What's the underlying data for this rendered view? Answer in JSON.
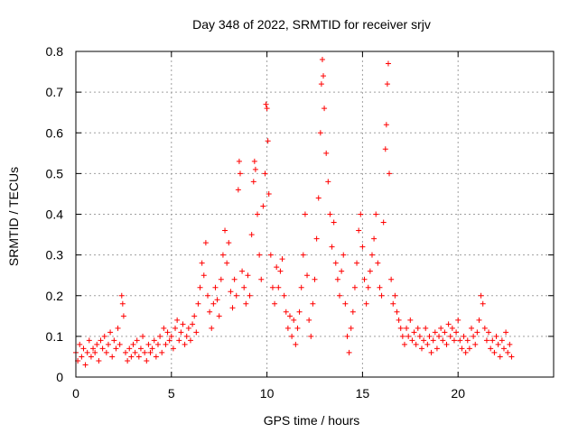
{
  "chart_data": {
    "type": "scatter",
    "title": "Day 348 of 2022, SRMTID for receiver srjv",
    "xlabel": "GPS time / hours",
    "ylabel": "SRMTID / TECUs",
    "xlim": [
      0,
      25
    ],
    "ylim": [
      0,
      0.8
    ],
    "xticks": [
      "0",
      "5",
      "10",
      "15",
      "20"
    ],
    "yticks": [
      "0",
      "0.1",
      "0.2",
      "0.3",
      "0.4",
      "0.5",
      "0.6",
      "0.7",
      "0.8"
    ],
    "grid": true,
    "marker": "+",
    "color": "#ff0000",
    "series": [
      {
        "name": "SRMTID",
        "points": [
          [
            0.0,
            0.06
          ],
          [
            0.1,
            0.04
          ],
          [
            0.2,
            0.08
          ],
          [
            0.3,
            0.05
          ],
          [
            0.4,
            0.07
          ],
          [
            0.5,
            0.03
          ],
          [
            0.6,
            0.06
          ],
          [
            0.7,
            0.09
          ],
          [
            0.8,
            0.05
          ],
          [
            0.9,
            0.07
          ],
          [
            1.0,
            0.06
          ],
          [
            1.1,
            0.08
          ],
          [
            1.2,
            0.04
          ],
          [
            1.3,
            0.09
          ],
          [
            1.4,
            0.07
          ],
          [
            1.5,
            0.1
          ],
          [
            1.6,
            0.06
          ],
          [
            1.7,
            0.08
          ],
          [
            1.8,
            0.11
          ],
          [
            1.9,
            0.05
          ],
          [
            2.0,
            0.09
          ],
          [
            2.1,
            0.07
          ],
          [
            2.2,
            0.12
          ],
          [
            2.3,
            0.08
          ],
          [
            2.4,
            0.2
          ],
          [
            2.45,
            0.18
          ],
          [
            2.5,
            0.15
          ],
          [
            2.6,
            0.06
          ],
          [
            2.7,
            0.04
          ],
          [
            2.8,
            0.07
          ],
          [
            2.9,
            0.05
          ],
          [
            3.0,
            0.08
          ],
          [
            3.1,
            0.06
          ],
          [
            3.2,
            0.09
          ],
          [
            3.3,
            0.05
          ],
          [
            3.4,
            0.07
          ],
          [
            3.5,
            0.1
          ],
          [
            3.6,
            0.06
          ],
          [
            3.7,
            0.04
          ],
          [
            3.8,
            0.08
          ],
          [
            3.9,
            0.06
          ],
          [
            4.0,
            0.07
          ],
          [
            4.1,
            0.09
          ],
          [
            4.2,
            0.05
          ],
          [
            4.3,
            0.08
          ],
          [
            4.4,
            0.1
          ],
          [
            4.5,
            0.06
          ],
          [
            4.6,
            0.12
          ],
          [
            4.7,
            0.08
          ],
          [
            4.8,
            0.11
          ],
          [
            4.9,
            0.09
          ],
          [
            5.0,
            0.1
          ],
          [
            5.1,
            0.07
          ],
          [
            5.2,
            0.12
          ],
          [
            5.3,
            0.14
          ],
          [
            5.4,
            0.09
          ],
          [
            5.5,
            0.11
          ],
          [
            5.6,
            0.13
          ],
          [
            5.7,
            0.08
          ],
          [
            5.8,
            0.1
          ],
          [
            5.9,
            0.12
          ],
          [
            6.0,
            0.09
          ],
          [
            6.1,
            0.13
          ],
          [
            6.2,
            0.15
          ],
          [
            6.3,
            0.11
          ],
          [
            6.4,
            0.18
          ],
          [
            6.5,
            0.22
          ],
          [
            6.6,
            0.28
          ],
          [
            6.7,
            0.25
          ],
          [
            6.8,
            0.33
          ],
          [
            6.9,
            0.2
          ],
          [
            7.0,
            0.16
          ],
          [
            7.1,
            0.12
          ],
          [
            7.2,
            0.18
          ],
          [
            7.3,
            0.22
          ],
          [
            7.4,
            0.19
          ],
          [
            7.5,
            0.15
          ],
          [
            7.6,
            0.24
          ],
          [
            7.7,
            0.3
          ],
          [
            7.8,
            0.36
          ],
          [
            7.9,
            0.28
          ],
          [
            8.0,
            0.33
          ],
          [
            8.1,
            0.21
          ],
          [
            8.2,
            0.17
          ],
          [
            8.3,
            0.24
          ],
          [
            8.4,
            0.2
          ],
          [
            8.5,
            0.46
          ],
          [
            8.55,
            0.53
          ],
          [
            8.6,
            0.5
          ],
          [
            8.7,
            0.26
          ],
          [
            8.8,
            0.22
          ],
          [
            8.9,
            0.18
          ],
          [
            9.0,
            0.25
          ],
          [
            9.1,
            0.2
          ],
          [
            9.2,
            0.35
          ],
          [
            9.3,
            0.48
          ],
          [
            9.35,
            0.53
          ],
          [
            9.4,
            0.51
          ],
          [
            9.5,
            0.4
          ],
          [
            9.6,
            0.3
          ],
          [
            9.7,
            0.24
          ],
          [
            9.8,
            0.42
          ],
          [
            9.9,
            0.5
          ],
          [
            9.95,
            0.67
          ],
          [
            10.0,
            0.66
          ],
          [
            10.05,
            0.58
          ],
          [
            10.1,
            0.45
          ],
          [
            10.2,
            0.3
          ],
          [
            10.3,
            0.22
          ],
          [
            10.4,
            0.18
          ],
          [
            10.5,
            0.27
          ],
          [
            10.6,
            0.22
          ],
          [
            10.7,
            0.26
          ],
          [
            10.8,
            0.29
          ],
          [
            10.9,
            0.2
          ],
          [
            11.0,
            0.16
          ],
          [
            11.1,
            0.12
          ],
          [
            11.2,
            0.15
          ],
          [
            11.3,
            0.1
          ],
          [
            11.4,
            0.14
          ],
          [
            11.5,
            0.08
          ],
          [
            11.6,
            0.12
          ],
          [
            11.7,
            0.16
          ],
          [
            11.8,
            0.22
          ],
          [
            11.9,
            0.3
          ],
          [
            12.0,
            0.4
          ],
          [
            12.1,
            0.25
          ],
          [
            12.2,
            0.14
          ],
          [
            12.3,
            0.1
          ],
          [
            12.4,
            0.18
          ],
          [
            12.5,
            0.24
          ],
          [
            12.6,
            0.34
          ],
          [
            12.7,
            0.44
          ],
          [
            12.8,
            0.6
          ],
          [
            12.85,
            0.72
          ],
          [
            12.9,
            0.78
          ],
          [
            12.95,
            0.74
          ],
          [
            13.0,
            0.66
          ],
          [
            13.1,
            0.55
          ],
          [
            13.2,
            0.48
          ],
          [
            13.3,
            0.4
          ],
          [
            13.4,
            0.32
          ],
          [
            13.5,
            0.38
          ],
          [
            13.6,
            0.28
          ],
          [
            13.7,
            0.24
          ],
          [
            13.8,
            0.2
          ],
          [
            13.9,
            0.26
          ],
          [
            14.0,
            0.3
          ],
          [
            14.1,
            0.18
          ],
          [
            14.2,
            0.1
          ],
          [
            14.3,
            0.06
          ],
          [
            14.4,
            0.12
          ],
          [
            14.5,
            0.16
          ],
          [
            14.6,
            0.22
          ],
          [
            14.7,
            0.28
          ],
          [
            14.8,
            0.36
          ],
          [
            14.9,
            0.4
          ],
          [
            15.0,
            0.32
          ],
          [
            15.1,
            0.24
          ],
          [
            15.2,
            0.18
          ],
          [
            15.3,
            0.22
          ],
          [
            15.4,
            0.26
          ],
          [
            15.5,
            0.3
          ],
          [
            15.6,
            0.34
          ],
          [
            15.7,
            0.4
          ],
          [
            15.8,
            0.28
          ],
          [
            15.9,
            0.22
          ],
          [
            16.0,
            0.2
          ],
          [
            16.1,
            0.38
          ],
          [
            16.2,
            0.56
          ],
          [
            16.25,
            0.62
          ],
          [
            16.3,
            0.72
          ],
          [
            16.35,
            0.77
          ],
          [
            16.4,
            0.5
          ],
          [
            16.5,
            0.24
          ],
          [
            16.6,
            0.18
          ],
          [
            16.7,
            0.2
          ],
          [
            16.8,
            0.16
          ],
          [
            16.9,
            0.14
          ],
          [
            17.0,
            0.12
          ],
          [
            17.1,
            0.1
          ],
          [
            17.2,
            0.08
          ],
          [
            17.3,
            0.12
          ],
          [
            17.4,
            0.1
          ],
          [
            17.5,
            0.14
          ],
          [
            17.6,
            0.09
          ],
          [
            17.7,
            0.11
          ],
          [
            17.8,
            0.08
          ],
          [
            17.9,
            0.12
          ],
          [
            18.0,
            0.1
          ],
          [
            18.1,
            0.07
          ],
          [
            18.2,
            0.09
          ],
          [
            18.3,
            0.12
          ],
          [
            18.4,
            0.08
          ],
          [
            18.5,
            0.1
          ],
          [
            18.6,
            0.06
          ],
          [
            18.7,
            0.09
          ],
          [
            18.8,
            0.11
          ],
          [
            18.9,
            0.07
          ],
          [
            19.0,
            0.1
          ],
          [
            19.1,
            0.12
          ],
          [
            19.2,
            0.09
          ],
          [
            19.3,
            0.11
          ],
          [
            19.4,
            0.08
          ],
          [
            19.5,
            0.13
          ],
          [
            19.6,
            0.1
          ],
          [
            19.7,
            0.12
          ],
          [
            19.8,
            0.09
          ],
          [
            19.9,
            0.11
          ],
          [
            20.0,
            0.14
          ],
          [
            20.1,
            0.09
          ],
          [
            20.2,
            0.07
          ],
          [
            20.3,
            0.1
          ],
          [
            20.4,
            0.06
          ],
          [
            20.5,
            0.09
          ],
          [
            20.6,
            0.07
          ],
          [
            20.7,
            0.12
          ],
          [
            20.8,
            0.1
          ],
          [
            20.9,
            0.08
          ],
          [
            21.0,
            0.11
          ],
          [
            21.1,
            0.14
          ],
          [
            21.2,
            0.2
          ],
          [
            21.3,
            0.18
          ],
          [
            21.4,
            0.12
          ],
          [
            21.5,
            0.09
          ],
          [
            21.6,
            0.11
          ],
          [
            21.7,
            0.07
          ],
          [
            21.8,
            0.09
          ],
          [
            21.9,
            0.06
          ],
          [
            22.0,
            0.1
          ],
          [
            22.1,
            0.08
          ],
          [
            22.2,
            0.05
          ],
          [
            22.3,
            0.09
          ],
          [
            22.4,
            0.07
          ],
          [
            22.5,
            0.11
          ],
          [
            22.6,
            0.06
          ],
          [
            22.7,
            0.08
          ],
          [
            22.8,
            0.05
          ]
        ]
      }
    ]
  }
}
